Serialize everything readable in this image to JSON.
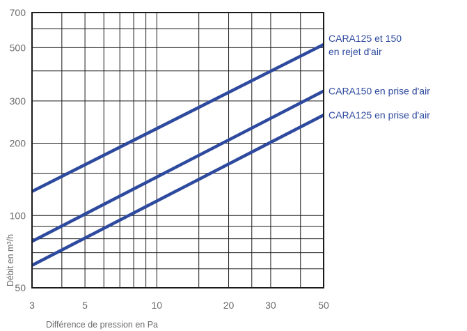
{
  "chart_data": {
    "type": "line",
    "title": "",
    "xlabel": "Différence de pression en Pa",
    "ylabel": "Débit en m³/h",
    "x_scale": "log",
    "y_scale": "log",
    "xlim": [
      3,
      50
    ],
    "ylim": [
      50,
      700
    ],
    "x_ticks": [
      3,
      5,
      10,
      20,
      30,
      50
    ],
    "y_ticks": [
      50,
      100,
      200,
      300,
      500,
      700
    ],
    "x_gridlines": [
      3,
      4,
      5,
      6,
      7,
      8,
      9,
      10,
      15,
      20,
      25,
      30,
      40,
      50
    ],
    "y_gridlines": [
      50,
      60,
      70,
      80,
      90,
      100,
      150,
      200,
      300,
      400,
      500,
      600,
      700
    ],
    "grid": true,
    "series_color": "#2e4a9e",
    "series": [
      {
        "name": "CARA125 et 150\nen rejet d'air",
        "x": [
          3,
          50
        ],
        "y": [
          126,
          515
        ]
      },
      {
        "name": "CARA150 en prise d'air",
        "x": [
          3,
          50
        ],
        "y": [
          78,
          330
        ]
      },
      {
        "name": "CARA125 en prise d'air",
        "x": [
          3,
          50
        ],
        "y": [
          62,
          262
        ]
      }
    ]
  }
}
